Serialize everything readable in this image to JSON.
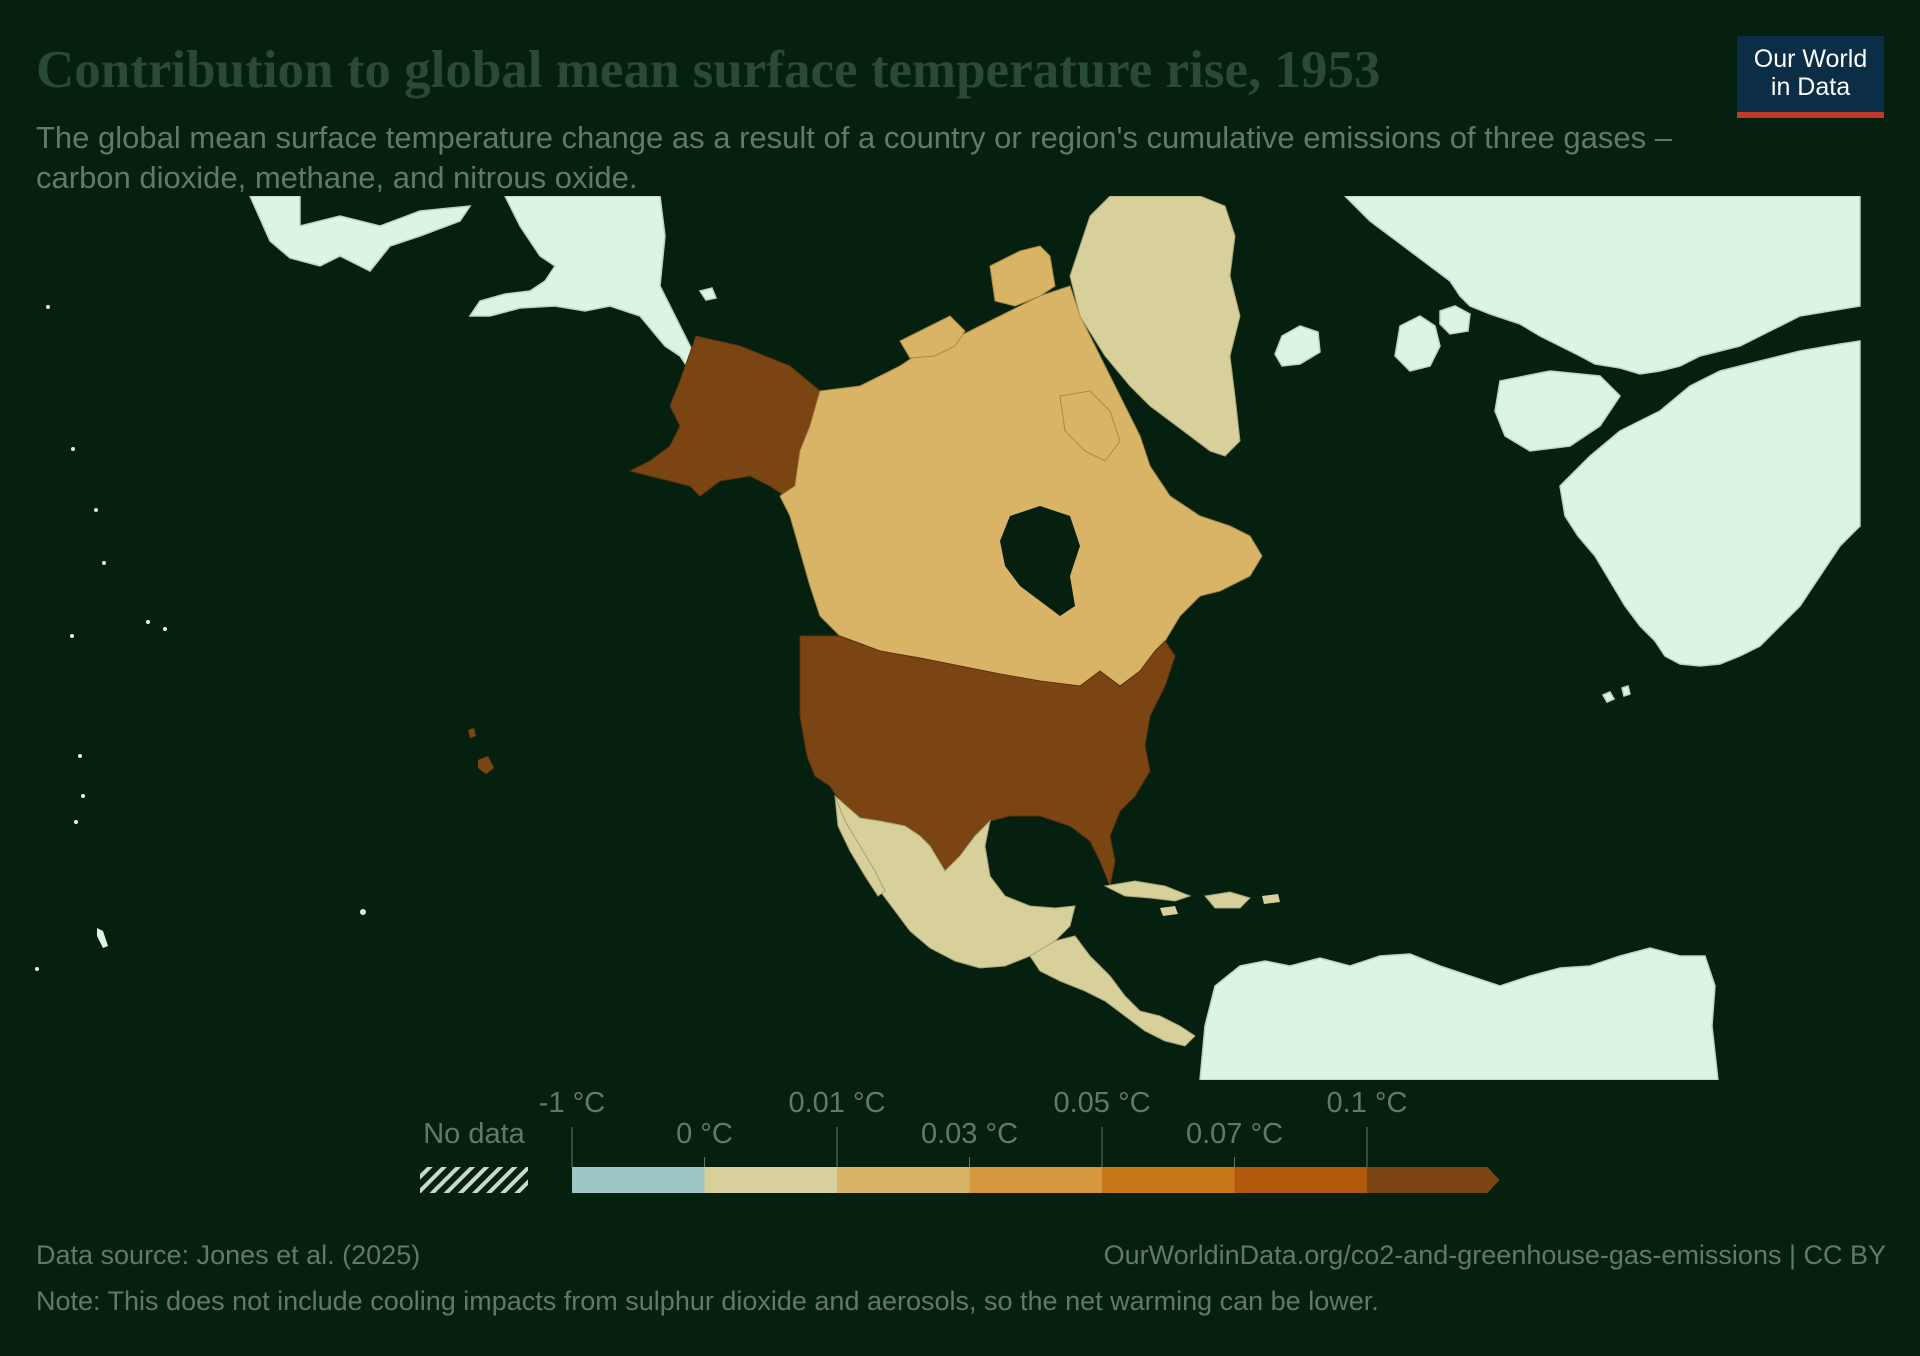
{
  "header": {
    "title": "Contribution to global mean surface temperature rise, 1953",
    "subtitle": "The global mean surface temperature change as a result of a country or region's cumulative emissions of three gases – carbon dioxide, methane, and nitrous oxide.",
    "logo_line1": "Our World",
    "logo_line2": "in Data"
  },
  "colors": {
    "background": "#05200e",
    "no_data_land": "#dcf5e3",
    "logo_background": "#0b2d45",
    "logo_accent": "#c0392b"
  },
  "legend": {
    "no_data_label": "No data",
    "top_labels": [
      "-1 °C",
      "0.01 °C",
      "0.05 °C",
      "0.1 °C"
    ],
    "bottom_labels": [
      "0 °C",
      "0.03 °C",
      "0.07 °C"
    ],
    "bins": [
      {
        "from": "-1 °C",
        "to": "0 °C",
        "color": "#9fc6c6"
      },
      {
        "from": "0 °C",
        "to": "0.01 °C",
        "color": "#d8d09a"
      },
      {
        "from": "0.01 °C",
        "to": "0.03 °C",
        "color": "#d9b466"
      },
      {
        "from": "0.03 °C",
        "to": "0.05 °C",
        "color": "#d6973f"
      },
      {
        "from": "0.05 °C",
        "to": "0.07 °C",
        "color": "#c8761a"
      },
      {
        "from": "0.07 °C",
        "to": "0.1 °C",
        "color": "#b0590d"
      },
      {
        "from": "0.1 °C",
        "to": "",
        "color": "#7a4512"
      }
    ]
  },
  "map_regions": [
    {
      "name": "United States",
      "bin": "0.1 °C+",
      "color": "#7a4512"
    },
    {
      "name": "Canada",
      "bin": "0.01–0.03 °C",
      "color": "#d9b466"
    },
    {
      "name": "Greenland",
      "bin": "0–0.01 °C",
      "color": "#d8d09a"
    },
    {
      "name": "Mexico",
      "bin": "0–0.01 °C",
      "color": "#d8d09a"
    },
    {
      "name": "Central America & Caribbean",
      "bin": "0–0.01 °C",
      "color": "#d8d09a"
    }
  ],
  "footer": {
    "source": "Data source: Jones et al. (2025)",
    "url": "OurWorldinData.org/co2-and-greenhouse-gas-emissions | CC BY",
    "note": "Note: This does not include cooling impacts from sulphur dioxide and aerosols, so the net warming can be lower."
  }
}
